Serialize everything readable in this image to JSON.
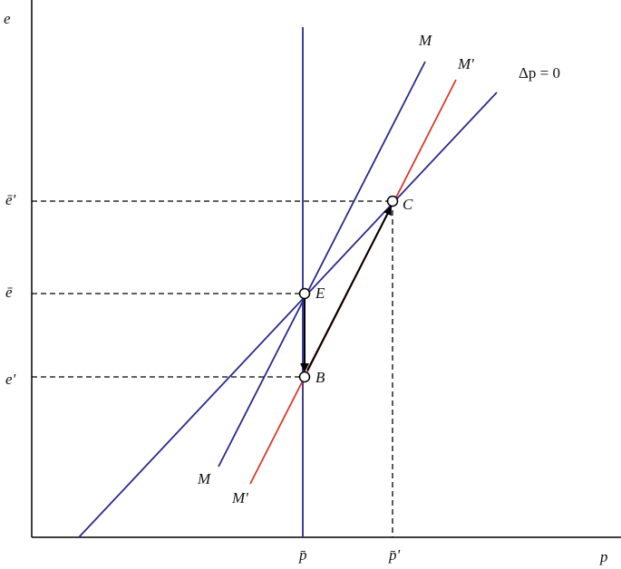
{
  "axes": {
    "y_label": "e",
    "x_label": "p"
  },
  "curves": {
    "m_upper": "M",
    "m_prime_upper": "M'",
    "delta_p": "Δp = 0",
    "m_lower": "M",
    "m_prime_lower": "M'"
  },
  "y_levels": {
    "e_bar_prime": "ē'",
    "e_bar": "ē",
    "e_prime": "e'"
  },
  "x_levels": {
    "p_bar": "p̄",
    "p_bar_prime": "p̄'"
  },
  "points": {
    "E": "E",
    "B": "B",
    "C": "C"
  }
}
